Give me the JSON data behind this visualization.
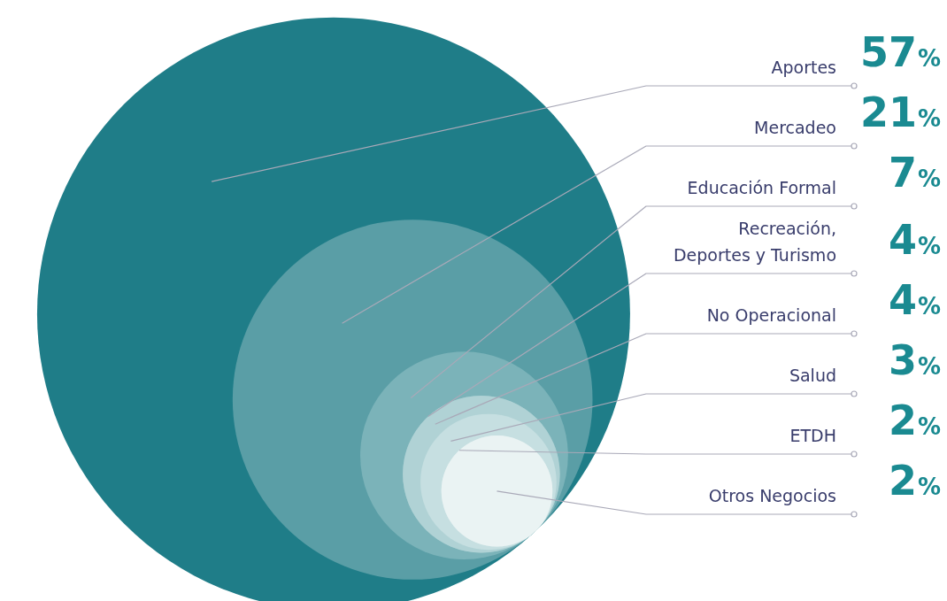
{
  "chart_data": {
    "type": "other",
    "categories": [
      "Aportes",
      "Mercadeo",
      "Educación Formal",
      "Recreación, Deportes y Turismo",
      "No Operacional",
      "Salud",
      "ETDH",
      "Otros Negocios"
    ],
    "values": [
      57,
      21,
      7,
      4,
      4,
      3,
      2,
      2
    ],
    "value_labels": [
      "57%",
      "21%",
      "7%",
      "4%",
      "4%",
      "3%",
      "2%",
      "2%"
    ],
    "colors": [
      "#1f7d88",
      "#5a9ea6",
      "#7bb3b9",
      "#98c4c8",
      "#b0d2d5",
      "#c6dfe1",
      "#dbeaeb",
      "#eaf3f3"
    ]
  }
}
